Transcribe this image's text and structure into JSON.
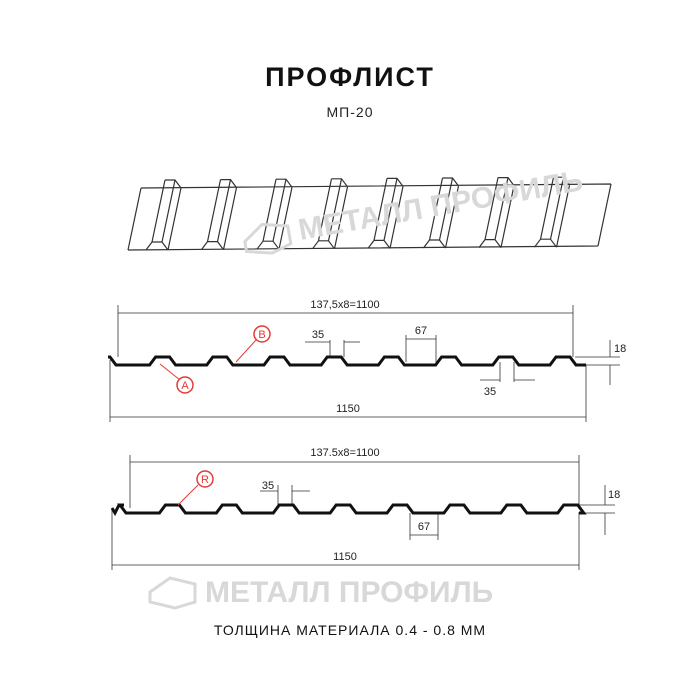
{
  "title": "ПРОФЛИСТ",
  "subtitle": "МП-20",
  "footer": "ТОЛЩИНА МАТЕРИАЛА 0.4 - 0.8 ММ",
  "watermark": "МЕТАЛЛ ПРОФИЛЬ",
  "profile_a": {
    "pitch_label": "137,5x8=1100",
    "width_label": "1150",
    "rib_top": "35",
    "rib_gap": "67",
    "rib_bottom": "35",
    "height": "18",
    "markers": [
      "A",
      "B"
    ]
  },
  "profile_r": {
    "pitch_label": "137.5x8=1100",
    "width_label": "1150",
    "rib_top": "35",
    "rib_gap": "67",
    "height": "18",
    "marker": "R"
  },
  "colors": {
    "marker": "#e53935",
    "line": "#111111",
    "watermark": "#d8d8d8"
  }
}
